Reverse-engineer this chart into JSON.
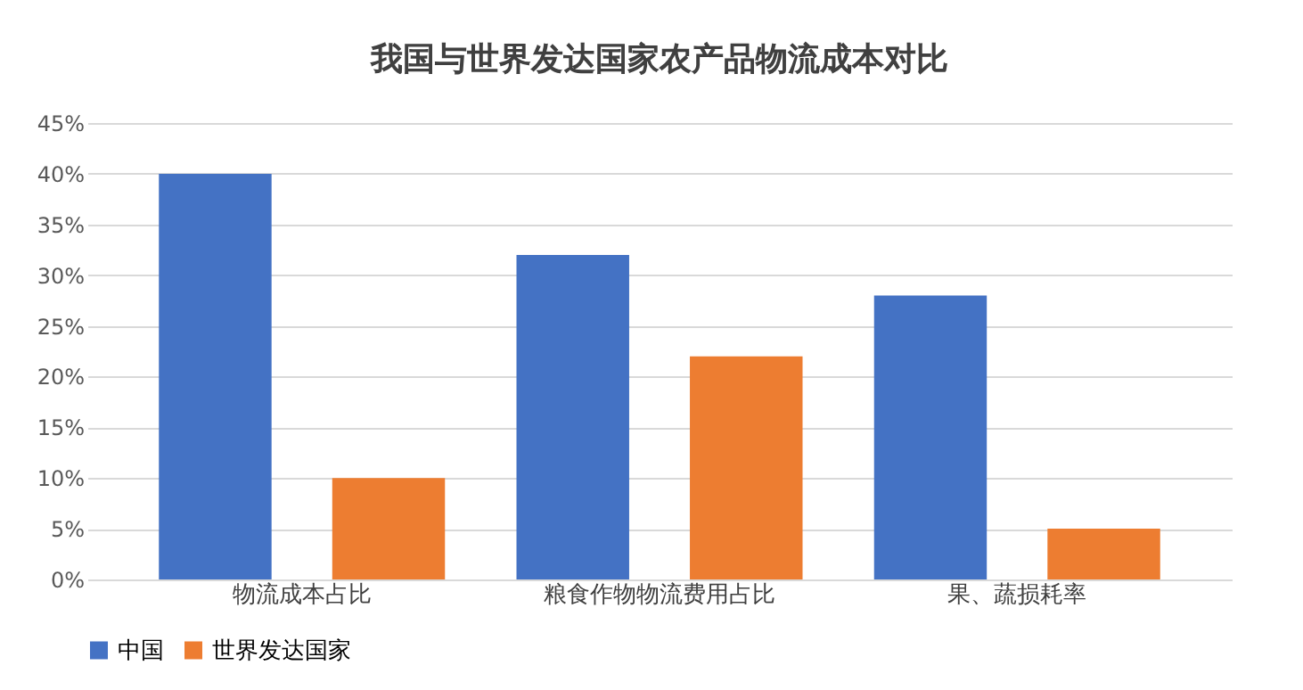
{
  "chart_data": {
    "type": "bar",
    "title": "我国与世界发达国家农产品物流成本对比",
    "categories": [
      "物流成本占比",
      "粮食作物物流费用占比",
      "果、蔬损耗率"
    ],
    "series": [
      {
        "name": "中国",
        "color": "#4472c4",
        "values": [
          40,
          32,
          28
        ]
      },
      {
        "name": "世界发达国家",
        "color": "#ed7d31",
        "values": [
          10,
          22,
          5
        ]
      }
    ],
    "ylim": [
      0,
      45
    ],
    "yticks": [
      {
        "value": 0,
        "label": "0%"
      },
      {
        "value": 5,
        "label": "5%"
      },
      {
        "value": 10,
        "label": "10%"
      },
      {
        "value": 15,
        "label": "15%"
      },
      {
        "value": 20,
        "label": "20%"
      },
      {
        "value": 25,
        "label": "25%"
      },
      {
        "value": 30,
        "label": "30%"
      },
      {
        "value": 35,
        "label": "35%"
      },
      {
        "value": 40,
        "label": "40%"
      },
      {
        "value": 45,
        "label": "45%"
      }
    ],
    "grid": "y",
    "legend": "bottom"
  }
}
